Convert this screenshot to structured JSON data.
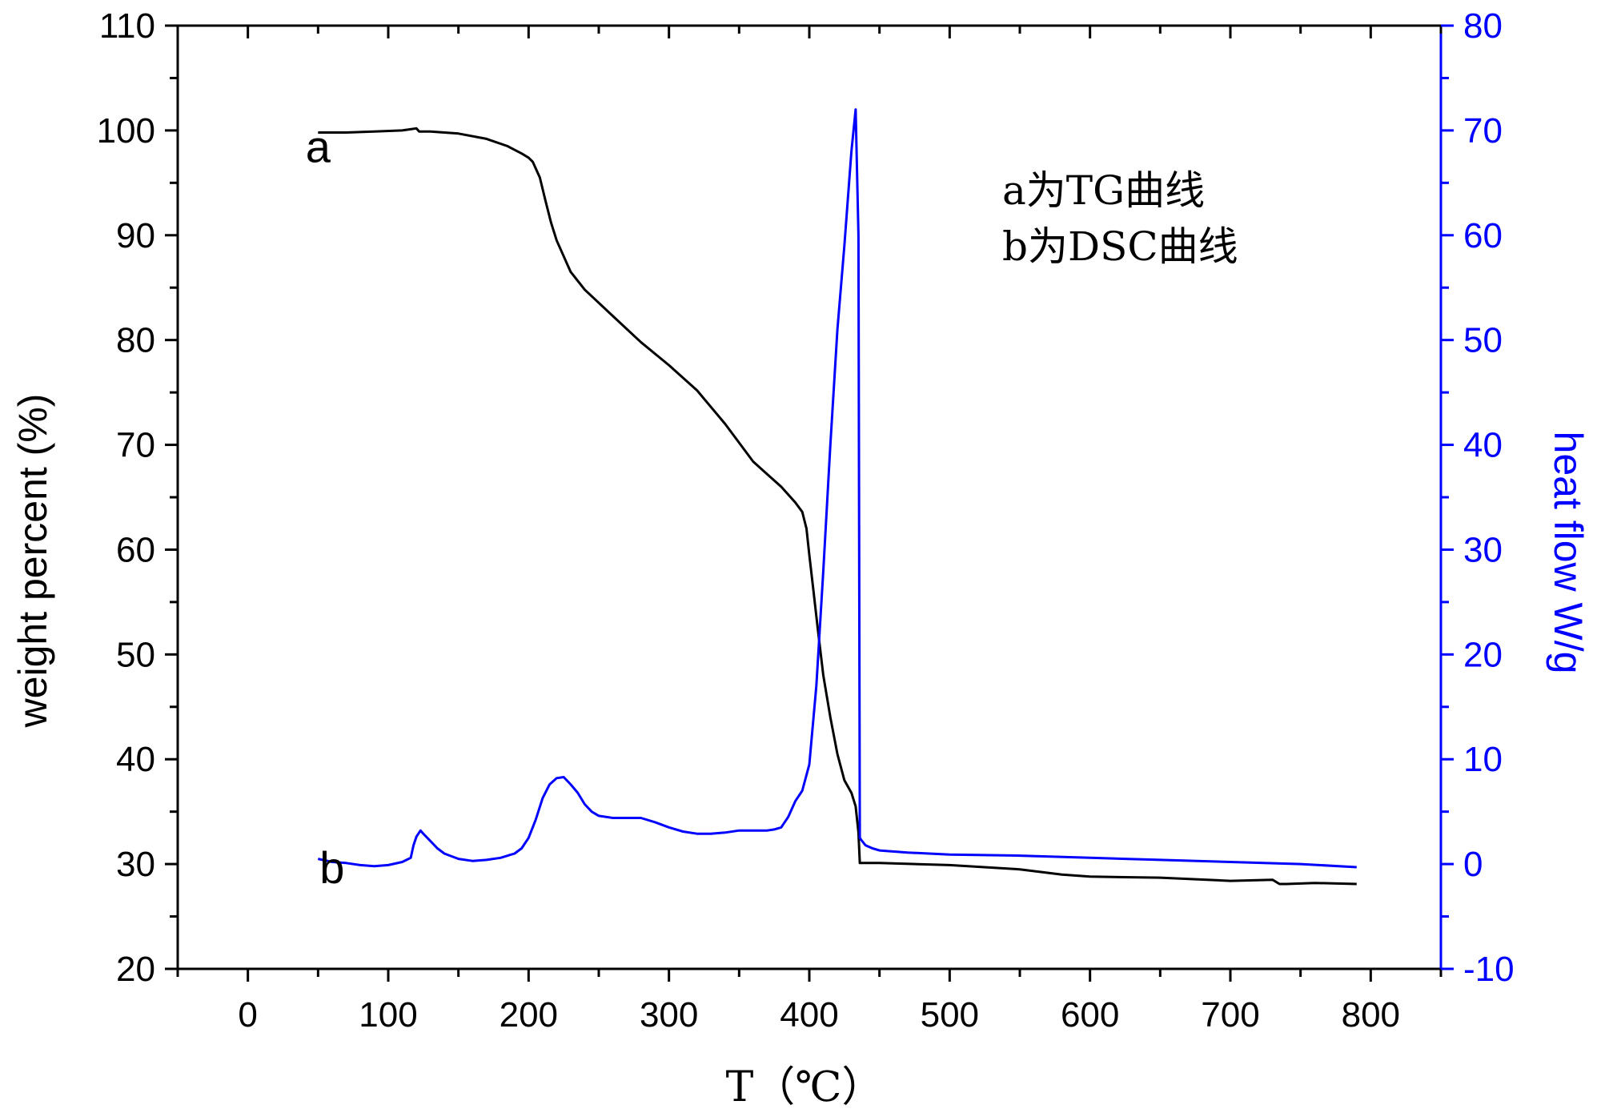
{
  "chart_data": {
    "type": "line",
    "xlabel": "T（℃）",
    "ylabel_left": "weight percent (%)",
    "ylabel_right": "heat flow W/g",
    "xlim": [
      -50,
      850
    ],
    "ylim_left": [
      20,
      110
    ],
    "ylim_right": [
      -10,
      80
    ],
    "x_ticks": [
      0,
      100,
      200,
      300,
      400,
      500,
      600,
      700,
      800
    ],
    "y_ticks_left": [
      20,
      30,
      40,
      50,
      60,
      70,
      80,
      90,
      100,
      110
    ],
    "y_ticks_right": [
      -10,
      0,
      10,
      20,
      30,
      40,
      50,
      60,
      70,
      80
    ],
    "grid": false,
    "legend_lines": [
      "a为TG曲线",
      "b为DSC曲线"
    ],
    "annotations": [
      {
        "text": "a",
        "x": 50,
        "y": 98.5
      },
      {
        "text": "b",
        "x": 60,
        "y": 29.7
      }
    ],
    "colors": {
      "tg": "#000000",
      "dsc": "#0000ff",
      "axis": "#000000",
      "right_axis": "#0000ff"
    },
    "series": [
      {
        "name": "a",
        "axis": "left",
        "x": [
          50,
          70,
          90,
          110,
          115,
          120,
          122,
          125,
          130,
          150,
          170,
          185,
          195,
          200,
          203,
          208,
          212,
          216,
          220,
          230,
          240,
          260,
          280,
          300,
          320,
          340,
          360,
          370,
          380,
          390,
          395,
          398,
          400,
          403,
          406,
          410,
          415,
          420,
          425,
          430,
          433,
          435,
          436,
          450,
          500,
          550,
          580,
          600,
          650,
          700,
          730,
          735,
          740,
          760,
          790
        ],
        "y": [
          99.8,
          99.8,
          99.9,
          100.0,
          100.1,
          100.2,
          99.9,
          99.9,
          99.9,
          99.7,
          99.2,
          98.5,
          97.8,
          97.4,
          97.0,
          95.5,
          93.3,
          91.2,
          89.5,
          86.5,
          84.8,
          82.3,
          79.8,
          77.6,
          75.2,
          72.0,
          68.4,
          67.2,
          66.0,
          64.5,
          63.6,
          62.0,
          59.5,
          56.0,
          52.5,
          48.0,
          44.0,
          40.5,
          38.0,
          36.8,
          35.5,
          33.0,
          30.1,
          30.1,
          29.9,
          29.5,
          29.0,
          28.8,
          28.7,
          28.4,
          28.5,
          28.1,
          28.1,
          28.2,
          28.1
        ]
      },
      {
        "name": "b",
        "axis": "right",
        "x": [
          50,
          60,
          70,
          80,
          90,
          100,
          110,
          116,
          118,
          120,
          123,
          125,
          130,
          135,
          140,
          150,
          160,
          170,
          180,
          190,
          195,
          200,
          205,
          210,
          215,
          220,
          225,
          230,
          235,
          240,
          245,
          250,
          260,
          280,
          290,
          300,
          310,
          320,
          330,
          340,
          350,
          360,
          370,
          375,
          380,
          385,
          390,
          395,
          400,
          405,
          410,
          415,
          420,
          425,
          430,
          433,
          435,
          436,
          437,
          440,
          445,
          450,
          470,
          500,
          550,
          600,
          650,
          700,
          750,
          790
        ],
        "y": [
          0.5,
          0.2,
          0.1,
          -0.1,
          -0.2,
          -0.1,
          0.2,
          0.6,
          1.8,
          2.6,
          3.2,
          2.9,
          2.2,
          1.5,
          1.0,
          0.5,
          0.3,
          0.4,
          0.6,
          1.0,
          1.5,
          2.5,
          4.2,
          6.3,
          7.6,
          8.2,
          8.3,
          7.6,
          6.8,
          5.7,
          5.0,
          4.6,
          4.4,
          4.4,
          4.0,
          3.5,
          3.1,
          2.9,
          2.9,
          3.0,
          3.2,
          3.2,
          3.2,
          3.3,
          3.5,
          4.5,
          6.0,
          7.0,
          9.5,
          17.0,
          28.0,
          40.0,
          51.0,
          59.0,
          68.0,
          72.0,
          60.0,
          2.5,
          2.3,
          1.8,
          1.5,
          1.3,
          1.1,
          0.9,
          0.8,
          0.6,
          0.4,
          0.2,
          0.0,
          -0.3
        ]
      }
    ]
  }
}
